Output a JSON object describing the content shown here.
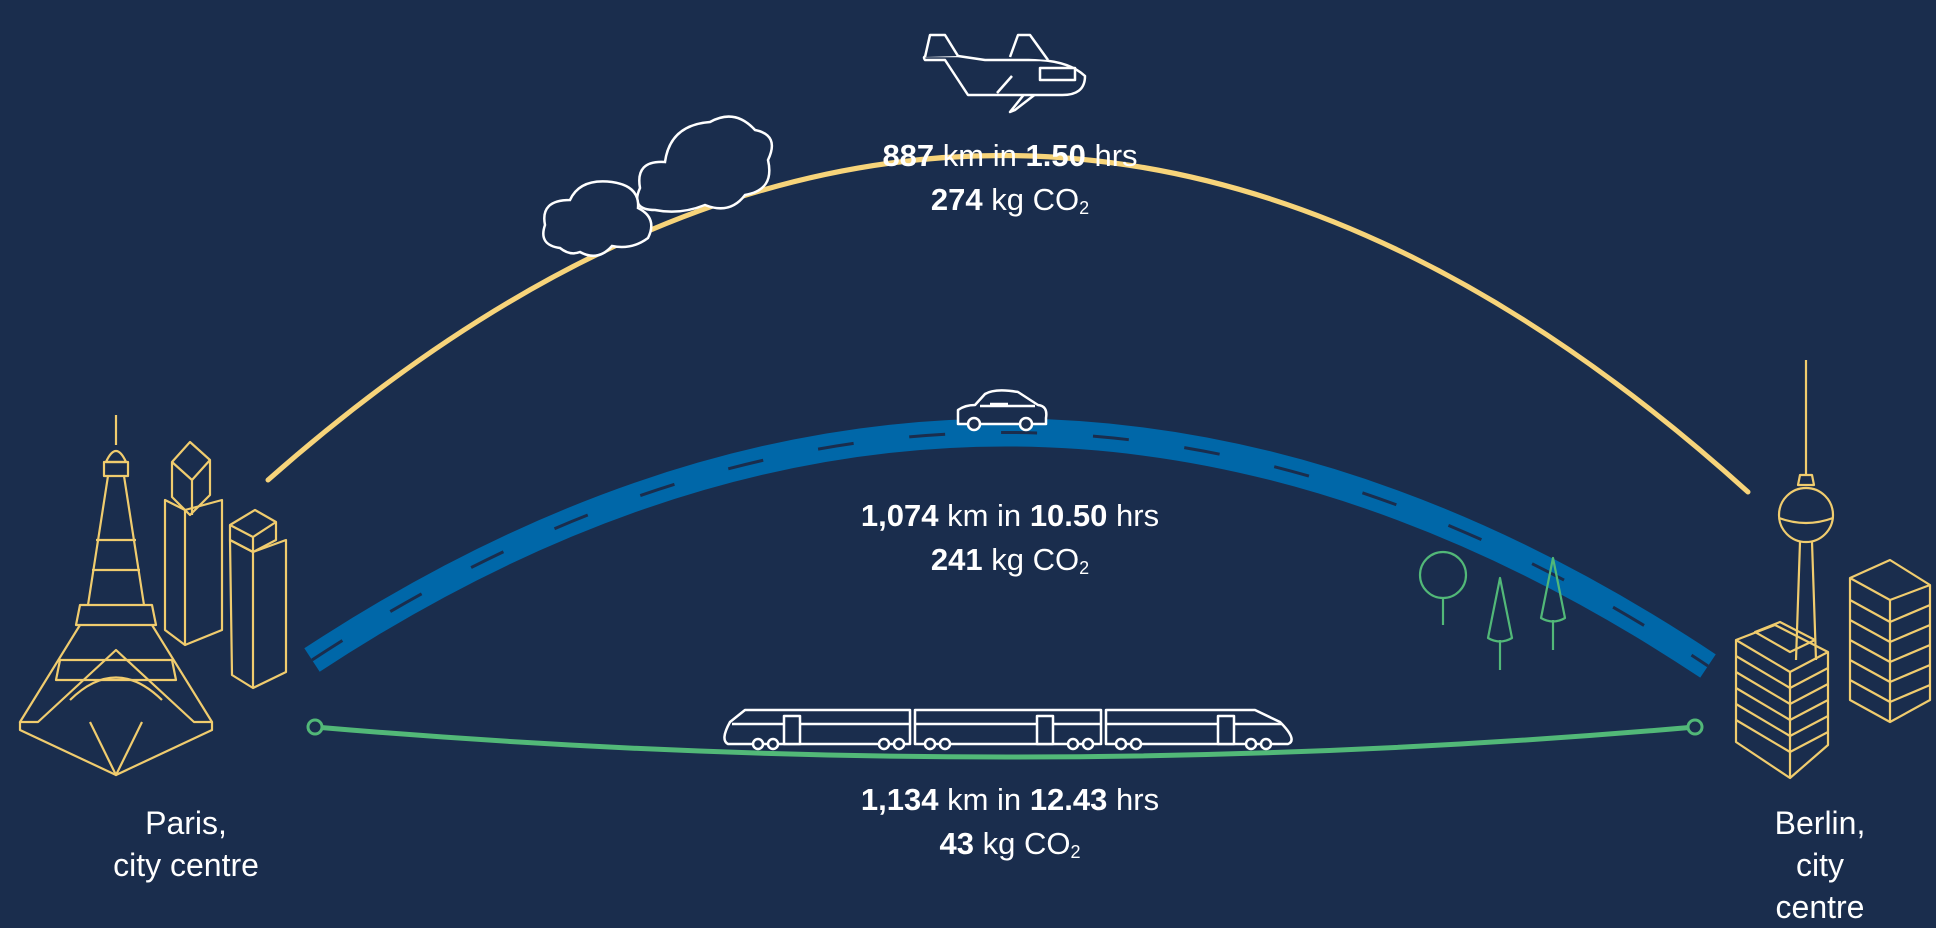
{
  "colors": {
    "background": "#1a2d4d",
    "flight": "#f7d47a",
    "road": "#0067a8",
    "rail": "#52b878",
    "city_line": "#f0cc6e",
    "trees": "#52b878",
    "vehicles": "#ffffff"
  },
  "icons": [
    "airplane-icon",
    "cloud-icon",
    "car-icon",
    "train-icon",
    "eiffel-tower-icon",
    "tv-tower-icon",
    "tree-icon",
    "building-icon"
  ],
  "origin": {
    "line1": "Paris,",
    "line2": "city centre"
  },
  "destination": {
    "line1": "Berlin,",
    "line2": "city centre"
  },
  "routes": {
    "plane": {
      "distance": "887",
      "dist_unit": "km in",
      "time": "1.50",
      "time_unit": "hrs",
      "co2": "274",
      "co2_unit": "kg CO",
      "co2_sub": "2"
    },
    "car": {
      "distance": "1,074",
      "dist_unit": "km in",
      "time": "10.50",
      "time_unit": "hrs",
      "co2": "241",
      "co2_unit": "kg CO",
      "co2_sub": "2"
    },
    "train": {
      "distance": "1,134",
      "dist_unit": "km in",
      "time": "12.43",
      "time_unit": "hrs",
      "co2": "43",
      "co2_unit": "kg CO",
      "co2_sub": "2"
    }
  }
}
